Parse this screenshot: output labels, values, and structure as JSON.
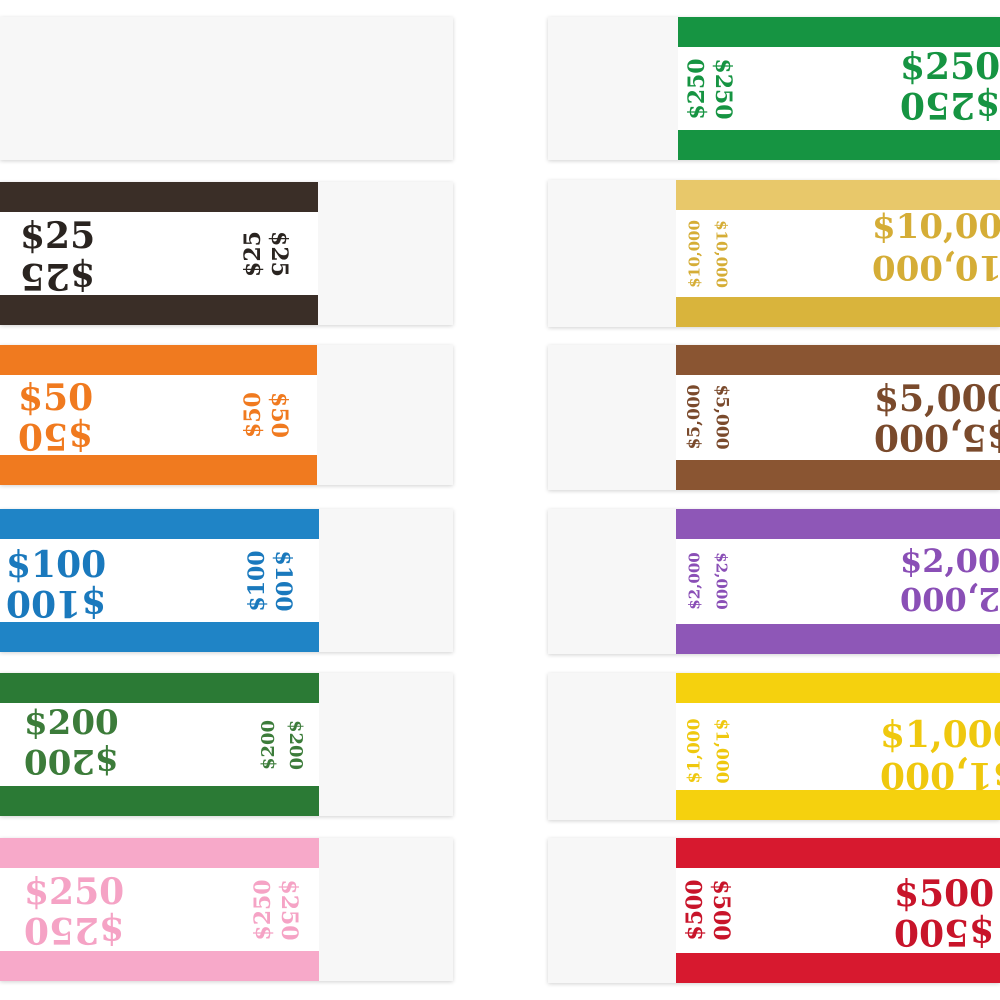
{
  "straps": [
    {
      "id": "blank",
      "label": "",
      "color": "#ffffff"
    },
    {
      "id": "25",
      "label": "$25",
      "color": "#3a2e27"
    },
    {
      "id": "50",
      "label": "$50",
      "color": "#f07a1f"
    },
    {
      "id": "100",
      "label": "$100",
      "color": "#1f84c6"
    },
    {
      "id": "200",
      "label": "$200",
      "color": "#2b7a35"
    },
    {
      "id": "250p",
      "label": "$250",
      "color": "#f7a9c9"
    },
    {
      "id": "250g",
      "label": "$250",
      "color": "#169442"
    },
    {
      "id": "10000",
      "label": "$10,000",
      "color": "#d9b43c"
    },
    {
      "id": "5000",
      "label": "$5,000",
      "color": "#8a5532"
    },
    {
      "id": "2000",
      "label": "$2,000",
      "color": "#8e57b7"
    },
    {
      "id": "1000",
      "label": "$1,000",
      "color": "#f5d10e"
    },
    {
      "id": "500",
      "label": "$500",
      "color": "#d7192f"
    }
  ]
}
